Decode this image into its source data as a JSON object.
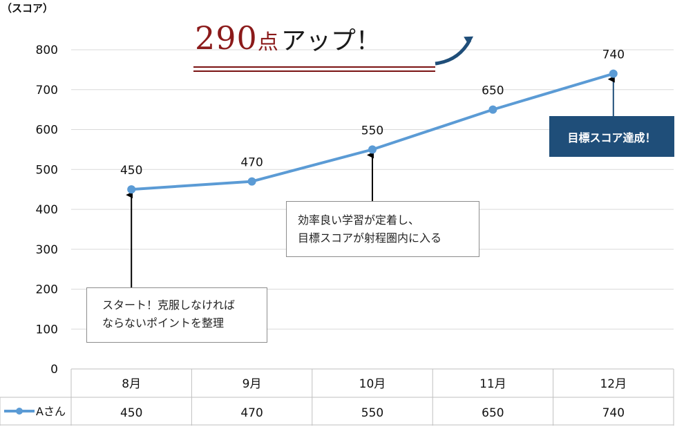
{
  "chart_data": {
    "type": "line",
    "categories": [
      "8月",
      "9月",
      "10月",
      "11月",
      "12月"
    ],
    "series": [
      {
        "name": "Aさん",
        "values": [
          450,
          470,
          550,
          650,
          740
        ],
        "color": "#5b9bd5"
      }
    ],
    "ylabel": "（スコア）",
    "ylim": [
      0,
      800
    ],
    "yticks": [
      0,
      100,
      200,
      300,
      400,
      500,
      600,
      700,
      800
    ],
    "grid": true,
    "data_table": true
  },
  "headline": {
    "number": "290",
    "unit": "点",
    "text": "アップ！",
    "color": "#8b1a1a"
  },
  "callouts": [
    {
      "lines": [
        "スタート！克服しなければ",
        "ならないポイントを整理"
      ]
    },
    {
      "lines": [
        "効率良い学習が定着し、",
        "目標スコアが射程圏内に入る"
      ]
    }
  ],
  "goal": {
    "text": "目標スコア達成！",
    "color": "#1f4e79"
  }
}
